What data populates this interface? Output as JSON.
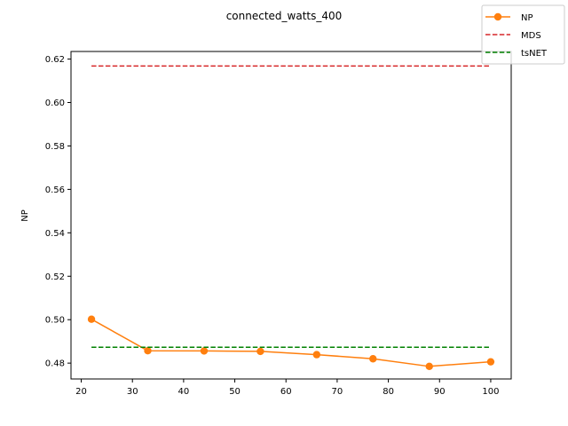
{
  "chart_data": {
    "type": "line",
    "title": "connected_watts_400",
    "xlabel": "",
    "ylabel": "NP",
    "xlim": [
      18,
      104
    ],
    "ylim": [
      0.4727,
      0.6235
    ],
    "x_ticks": [
      20,
      30,
      40,
      50,
      60,
      70,
      80,
      90,
      100
    ],
    "y_ticks": [
      0.48,
      0.5,
      0.52,
      0.54,
      0.56,
      0.58,
      0.6,
      0.62
    ],
    "y_tick_labels": [
      "0.48",
      "0.50",
      "0.52",
      "0.54",
      "0.56",
      "0.58",
      "0.60",
      "0.62"
    ],
    "grid": false,
    "legend_position": "top-right",
    "series": [
      {
        "name": "NP",
        "style": "solid-marker",
        "color": "#ff7f0e",
        "x": [
          22,
          33,
          44,
          55,
          66,
          77,
          88,
          100
        ],
        "y": [
          0.5002,
          0.4857,
          0.4856,
          0.4854,
          0.4839,
          0.482,
          0.4785,
          0.4806
        ]
      },
      {
        "name": "MDS",
        "style": "dashed",
        "color": "#d62728",
        "x": [
          22,
          100
        ],
        "y": [
          0.6168,
          0.6168
        ]
      },
      {
        "name": "tsNET",
        "style": "dashed",
        "color": "#008000",
        "x": [
          22,
          100
        ],
        "y": [
          0.4873,
          0.4873
        ]
      }
    ]
  }
}
